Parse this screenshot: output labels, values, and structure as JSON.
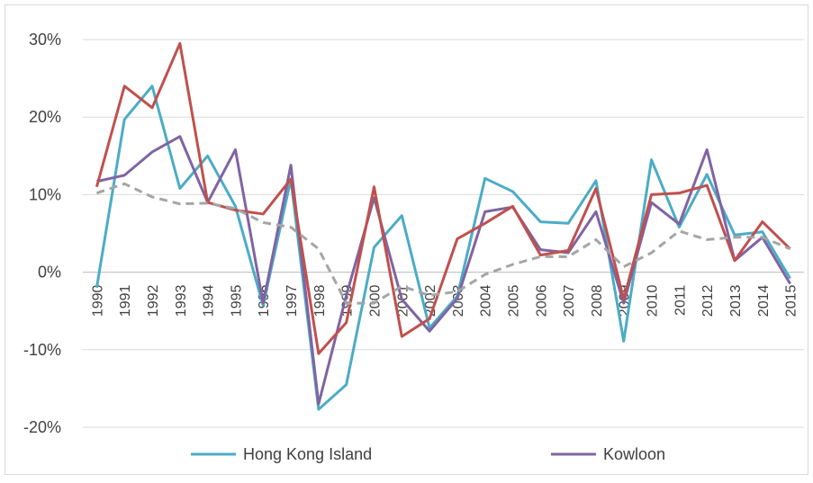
{
  "chart_data": {
    "type": "line",
    "categories": [
      "1990",
      "1991",
      "1992",
      "1993",
      "1994",
      "1995",
      "1996",
      "1997",
      "1998",
      "1999",
      "2000",
      "2001",
      "2002",
      "2003",
      "2004",
      "2005",
      "2006",
      "2007",
      "2008",
      "2009",
      "2010",
      "2011",
      "2012",
      "2013",
      "2014",
      "2015"
    ],
    "series": [
      {
        "name": "Hong Kong Island",
        "color": "#4bacc6",
        "values": [
          -2,
          19.7,
          24,
          10.8,
          15,
          8.5,
          -4.3,
          12,
          -17.7,
          -14.5,
          3.2,
          7.3,
          -7.2,
          -3.1,
          12.1,
          10.4,
          6.5,
          6.3,
          11.8,
          -8.9,
          14.5,
          5.8,
          12.6,
          4.8,
          5.2,
          -0.8
        ]
      },
      {
        "name": "Kowloon",
        "color": "#8064a2",
        "values": [
          11.7,
          12.5,
          15.5,
          17.5,
          9,
          15.8,
          -4,
          13.8,
          -17,
          -3,
          9.6,
          -3.5,
          -7.6,
          -3.4,
          7.8,
          8.4,
          2.9,
          2.5,
          7.8,
          -4,
          9,
          6.2,
          15.8,
          1.5,
          4.5,
          -1.5
        ]
      },
      {
        "color": "#c0504d",
        "values": [
          11,
          24,
          21.2,
          29.5,
          9,
          8,
          7.5,
          12,
          -10.5,
          -6.5,
          11,
          -8.3,
          -6,
          4.3,
          6.3,
          8.5,
          2.2,
          2.8,
          10.8,
          -3.5,
          10,
          10.2,
          11.2,
          1.5,
          6.5,
          3
        ]
      },
      {
        "color": "#a5a5a5",
        "dashed": true,
        "values": [
          10.2,
          11.4,
          9.7,
          8.8,
          8.9,
          8.2,
          6.4,
          5.8,
          3,
          -4,
          -4,
          -1.8,
          -3,
          -2.5,
          -0.3,
          1,
          2,
          2,
          4.2,
          0.7,
          2.5,
          5.3,
          4.2,
          4.5,
          4.5,
          3
        ]
      }
    ],
    "ylim": [
      -20,
      30
    ],
    "yticks": [
      {
        "value": -20,
        "label": "-20%"
      },
      {
        "value": -10,
        "label": "-10%"
      },
      {
        "value": 0,
        "label": "0%"
      },
      {
        "value": 10,
        "label": "10%"
      },
      {
        "value": 20,
        "label": "20%"
      },
      {
        "value": 30,
        "label": "30%"
      }
    ],
    "grid": true
  }
}
